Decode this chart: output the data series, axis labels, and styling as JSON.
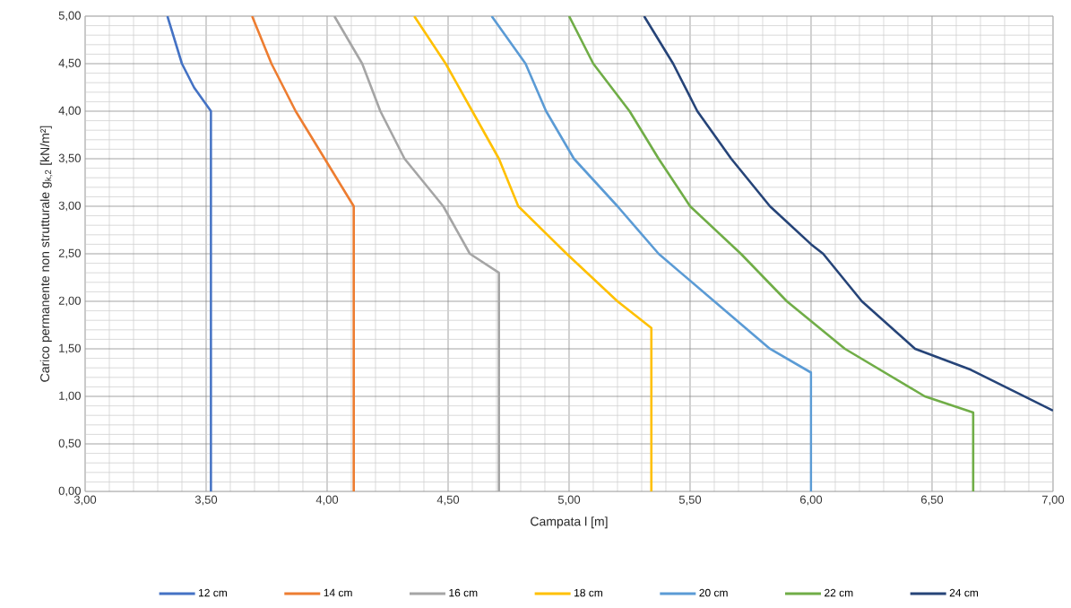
{
  "chart_data": {
    "type": "line",
    "xlabel": "Campata l [m]",
    "ylabel": "Carico permanente non strutturale g$_{k,2}$ [kN/m²]",
    "xlim": [
      3,
      7
    ],
    "ylim": [
      0,
      5
    ],
    "xticks": [
      {
        "value": 3,
        "label": "3,00"
      },
      {
        "value": 3.5,
        "label": "3,50"
      },
      {
        "value": 4,
        "label": "4,00"
      },
      {
        "value": 4.5,
        "label": "4,50"
      },
      {
        "value": 5,
        "label": "5,00"
      },
      {
        "value": 5.5,
        "label": "5,50"
      },
      {
        "value": 6,
        "label": "6,00"
      },
      {
        "value": 6.5,
        "label": "6,50"
      },
      {
        "value": 7,
        "label": "7,00"
      }
    ],
    "yticks": [
      {
        "value": 0,
        "label": "0,00"
      },
      {
        "value": 0.5,
        "label": "0,50"
      },
      {
        "value": 1,
        "label": "1,00"
      },
      {
        "value": 1.5,
        "label": "1,50"
      },
      {
        "value": 2,
        "label": "2,00"
      },
      {
        "value": 2.5,
        "label": "2,50"
      },
      {
        "value": 3,
        "label": "3,00"
      },
      {
        "value": 3.5,
        "label": "3,50"
      },
      {
        "value": 4,
        "label": "4,00"
      },
      {
        "value": 4.5,
        "label": "4,50"
      },
      {
        "value": 5,
        "label": "5,00"
      }
    ],
    "grid": true,
    "legend": "bottom",
    "marker": "none",
    "line_style": "solid",
    "series": [
      {
        "name": "12 cm",
        "color": "#4472c4",
        "x": [
          3.34,
          3.4,
          3.45,
          3.52,
          3.52
        ],
        "values": [
          5,
          4.5,
          4.25,
          4.0,
          0
        ]
      },
      {
        "name": "14 cm",
        "color": "#ed7d31",
        "x": [
          3.69,
          3.77,
          3.87,
          3.99,
          4.11,
          4.11
        ],
        "values": [
          5,
          4.5,
          4.0,
          3.5,
          3.0,
          0
        ]
      },
      {
        "name": "16 cm",
        "color": "#a5a5a5",
        "x": [
          4.03,
          4.145,
          4.22,
          4.32,
          4.48,
          4.59,
          4.71,
          4.71
        ],
        "values": [
          5,
          4.5,
          4.0,
          3.5,
          3.0,
          2.5,
          2.3,
          0
        ]
      },
      {
        "name": "18 cm",
        "color": "#ffc000",
        "x": [
          4.36,
          4.49,
          4.6,
          4.71,
          4.79,
          4.99,
          5.2,
          5.34,
          5.34
        ],
        "values": [
          5,
          4.5,
          4.0,
          3.5,
          3.0,
          2.5,
          2.0,
          1.72,
          0
        ]
      },
      {
        "name": "20 cm",
        "color": "#5b9bd5",
        "x": [
          4.68,
          4.82,
          4.905,
          5.02,
          5.2,
          5.37,
          5.6,
          5.83,
          6.0,
          6.0
        ],
        "values": [
          5,
          4.5,
          4.0,
          3.5,
          3.0,
          2.5,
          2.0,
          1.5,
          1.25,
          0
        ]
      },
      {
        "name": "22 cm",
        "color": "#70ad47",
        "x": [
          5.0,
          5.1,
          5.25,
          5.37,
          5.5,
          5.71,
          5.9,
          6.14,
          6.47,
          6.67,
          6.67
        ],
        "values": [
          5,
          4.5,
          4.0,
          3.5,
          3.0,
          2.5,
          2.0,
          1.5,
          1.0,
          0.83,
          0
        ]
      },
      {
        "name": "24 cm",
        "color": "#264478",
        "x": [
          5.31,
          5.43,
          5.53,
          5.67,
          5.83,
          6.0,
          6.05,
          6.21,
          6.43,
          6.66,
          7.0
        ],
        "values": [
          5,
          4.5,
          4.0,
          3.5,
          3.0,
          2.6,
          2.5,
          2.0,
          1.5,
          1.28,
          0.85
        ]
      }
    ]
  }
}
